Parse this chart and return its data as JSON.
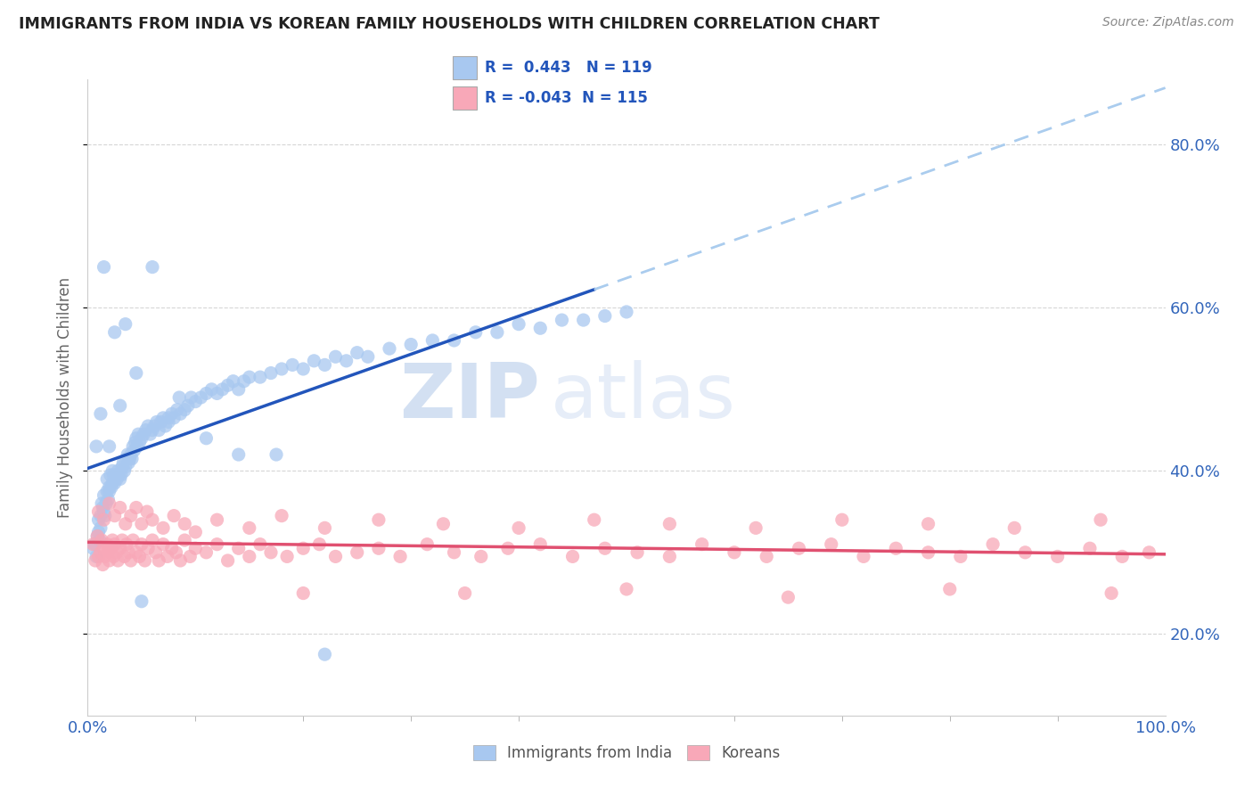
{
  "title": "IMMIGRANTS FROM INDIA VS KOREAN FAMILY HOUSEHOLDS WITH CHILDREN CORRELATION CHART",
  "source": "Source: ZipAtlas.com",
  "ylabel": "Family Households with Children",
  "xlim": [
    0.0,
    1.0
  ],
  "ylim": [
    0.1,
    0.88
  ],
  "x_ticks": [
    0.0,
    0.5,
    1.0
  ],
  "x_tick_labels": [
    "0.0%",
    "",
    "100.0%"
  ],
  "y_tick_labels": [
    "20.0%",
    "40.0%",
    "60.0%",
    "80.0%"
  ],
  "y_ticks": [
    0.2,
    0.4,
    0.6,
    0.8
  ],
  "india_color": "#a8c8f0",
  "korea_color": "#f8a8b8",
  "india_line_color": "#2255bb",
  "korea_line_color": "#e05070",
  "india_R": 0.443,
  "india_N": 119,
  "korea_R": -0.043,
  "korea_N": 115,
  "watermark_zip": "ZIP",
  "watermark_atlas": "atlas",
  "legend_label_india": "Immigrants from India",
  "legend_label_korea": "Koreans",
  "india_scatter_x": [
    0.005,
    0.007,
    0.008,
    0.009,
    0.01,
    0.01,
    0.011,
    0.012,
    0.012,
    0.013,
    0.014,
    0.015,
    0.015,
    0.016,
    0.017,
    0.018,
    0.018,
    0.019,
    0.02,
    0.02,
    0.021,
    0.022,
    0.023,
    0.023,
    0.024,
    0.025,
    0.026,
    0.027,
    0.028,
    0.029,
    0.03,
    0.031,
    0.032,
    0.033,
    0.034,
    0.035,
    0.036,
    0.037,
    0.038,
    0.039,
    0.04,
    0.041,
    0.042,
    0.043,
    0.044,
    0.045,
    0.046,
    0.047,
    0.048,
    0.05,
    0.052,
    0.054,
    0.056,
    0.058,
    0.06,
    0.062,
    0.064,
    0.066,
    0.068,
    0.07,
    0.072,
    0.075,
    0.078,
    0.08,
    0.083,
    0.086,
    0.09,
    0.093,
    0.096,
    0.1,
    0.105,
    0.11,
    0.115,
    0.12,
    0.125,
    0.13,
    0.135,
    0.14,
    0.145,
    0.15,
    0.16,
    0.17,
    0.18,
    0.19,
    0.2,
    0.21,
    0.22,
    0.23,
    0.24,
    0.25,
    0.26,
    0.28,
    0.3,
    0.32,
    0.34,
    0.36,
    0.38,
    0.4,
    0.42,
    0.44,
    0.46,
    0.48,
    0.5,
    0.05,
    0.025,
    0.015,
    0.035,
    0.06,
    0.085,
    0.11,
    0.14,
    0.175,
    0.22,
    0.008,
    0.012,
    0.02,
    0.03,
    0.045,
    0.075
  ],
  "india_scatter_y": [
    0.305,
    0.31,
    0.295,
    0.32,
    0.325,
    0.34,
    0.315,
    0.33,
    0.345,
    0.36,
    0.355,
    0.37,
    0.35,
    0.345,
    0.36,
    0.375,
    0.39,
    0.365,
    0.375,
    0.38,
    0.395,
    0.38,
    0.385,
    0.4,
    0.395,
    0.385,
    0.395,
    0.39,
    0.4,
    0.395,
    0.39,
    0.395,
    0.405,
    0.41,
    0.4,
    0.405,
    0.415,
    0.42,
    0.41,
    0.415,
    0.42,
    0.415,
    0.43,
    0.425,
    0.435,
    0.44,
    0.43,
    0.445,
    0.435,
    0.44,
    0.445,
    0.45,
    0.455,
    0.445,
    0.45,
    0.455,
    0.46,
    0.45,
    0.46,
    0.465,
    0.455,
    0.46,
    0.47,
    0.465,
    0.475,
    0.47,
    0.475,
    0.48,
    0.49,
    0.485,
    0.49,
    0.495,
    0.5,
    0.495,
    0.5,
    0.505,
    0.51,
    0.5,
    0.51,
    0.515,
    0.515,
    0.52,
    0.525,
    0.53,
    0.525,
    0.535,
    0.53,
    0.54,
    0.535,
    0.545,
    0.54,
    0.55,
    0.555,
    0.56,
    0.56,
    0.57,
    0.57,
    0.58,
    0.575,
    0.585,
    0.585,
    0.59,
    0.595,
    0.24,
    0.57,
    0.65,
    0.58,
    0.65,
    0.49,
    0.44,
    0.42,
    0.42,
    0.175,
    0.43,
    0.47,
    0.43,
    0.48,
    0.52,
    0.465
  ],
  "korea_scatter_x": [
    0.005,
    0.007,
    0.009,
    0.01,
    0.012,
    0.013,
    0.014,
    0.015,
    0.016,
    0.018,
    0.019,
    0.02,
    0.022,
    0.023,
    0.024,
    0.025,
    0.027,
    0.028,
    0.03,
    0.032,
    0.034,
    0.036,
    0.038,
    0.04,
    0.042,
    0.045,
    0.048,
    0.05,
    0.053,
    0.056,
    0.06,
    0.063,
    0.066,
    0.07,
    0.074,
    0.078,
    0.082,
    0.086,
    0.09,
    0.095,
    0.1,
    0.11,
    0.12,
    0.13,
    0.14,
    0.15,
    0.16,
    0.17,
    0.185,
    0.2,
    0.215,
    0.23,
    0.25,
    0.27,
    0.29,
    0.315,
    0.34,
    0.365,
    0.39,
    0.42,
    0.45,
    0.48,
    0.51,
    0.54,
    0.57,
    0.6,
    0.63,
    0.66,
    0.69,
    0.72,
    0.75,
    0.78,
    0.81,
    0.84,
    0.87,
    0.9,
    0.93,
    0.96,
    0.985,
    0.01,
    0.015,
    0.02,
    0.025,
    0.03,
    0.035,
    0.04,
    0.045,
    0.05,
    0.055,
    0.06,
    0.07,
    0.08,
    0.09,
    0.1,
    0.12,
    0.15,
    0.18,
    0.22,
    0.27,
    0.33,
    0.4,
    0.47,
    0.54,
    0.62,
    0.7,
    0.78,
    0.86,
    0.94,
    0.2,
    0.35,
    0.5,
    0.65,
    0.8,
    0.95
  ],
  "korea_scatter_y": [
    0.31,
    0.29,
    0.32,
    0.295,
    0.3,
    0.315,
    0.285,
    0.305,
    0.295,
    0.31,
    0.3,
    0.29,
    0.305,
    0.315,
    0.295,
    0.31,
    0.3,
    0.29,
    0.305,
    0.315,
    0.295,
    0.31,
    0.3,
    0.29,
    0.315,
    0.3,
    0.295,
    0.31,
    0.29,
    0.305,
    0.315,
    0.3,
    0.29,
    0.31,
    0.295,
    0.305,
    0.3,
    0.29,
    0.315,
    0.295,
    0.305,
    0.3,
    0.31,
    0.29,
    0.305,
    0.295,
    0.31,
    0.3,
    0.295,
    0.305,
    0.31,
    0.295,
    0.3,
    0.305,
    0.295,
    0.31,
    0.3,
    0.295,
    0.305,
    0.31,
    0.295,
    0.305,
    0.3,
    0.295,
    0.31,
    0.3,
    0.295,
    0.305,
    0.31,
    0.295,
    0.305,
    0.3,
    0.295,
    0.31,
    0.3,
    0.295,
    0.305,
    0.295,
    0.3,
    0.35,
    0.34,
    0.36,
    0.345,
    0.355,
    0.335,
    0.345,
    0.355,
    0.335,
    0.35,
    0.34,
    0.33,
    0.345,
    0.335,
    0.325,
    0.34,
    0.33,
    0.345,
    0.33,
    0.34,
    0.335,
    0.33,
    0.34,
    0.335,
    0.33,
    0.34,
    0.335,
    0.33,
    0.34,
    0.25,
    0.25,
    0.255,
    0.245,
    0.255,
    0.25
  ]
}
